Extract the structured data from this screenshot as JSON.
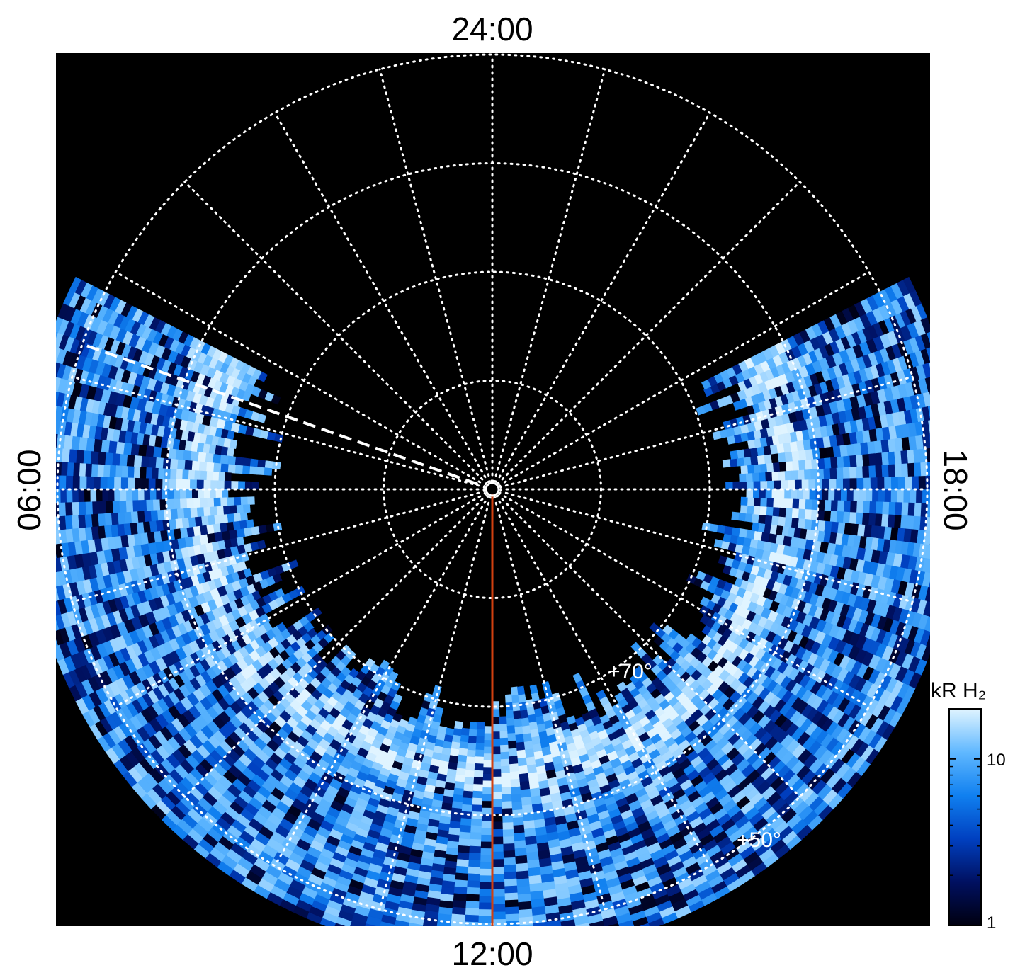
{
  "chart_data": {
    "type": "heatmap",
    "projection": "polar",
    "title": "",
    "local_time_labels": {
      "top": "24:00",
      "bottom": "12:00",
      "left": "06:00",
      "right": "18:00"
    },
    "meridian_step_hours": 1,
    "latitude_circles_deg": [
      50,
      60,
      70,
      80,
      89
    ],
    "latitude_labels": [
      {
        "text": "+70°",
        "latitude": 70
      },
      {
        "text": "+50°",
        "latitude": 50
      }
    ],
    "colorbar": {
      "title": "kR H₂",
      "scale": "log",
      "min": 1,
      "max": 20,
      "ticks": [
        1,
        10
      ],
      "tick_labels": [
        "1",
        "10"
      ],
      "colors": [
        "#000010",
        "#001060",
        "#0040c0",
        "#1080f0",
        "#60b8ff",
        "#e0f4ff"
      ]
    },
    "emission_region": {
      "description_latitude_range": [
        47,
        72
      ],
      "local_time_range_hours": [
        4.2,
        19.8
      ]
    },
    "highlighted_meridians": [
      {
        "local_time_hours": 12.0,
        "style": "solid",
        "color": "#d04010"
      },
      {
        "local_time_hours": 4.7,
        "style": "dashed",
        "color": "#ffffff"
      }
    ],
    "grid": true,
    "background": "#000000"
  }
}
